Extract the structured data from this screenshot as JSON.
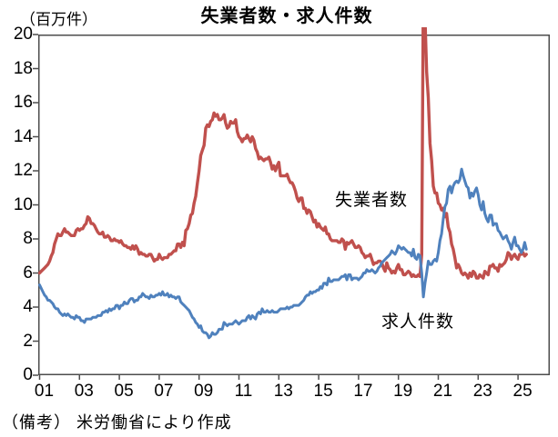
{
  "title": "失業者数・求人件数",
  "unit_label": "（百万件）",
  "note": "（備考） 米労働省により作成",
  "colors": {
    "unemployed_line": "#C0504D",
    "openings_line": "#4F81BD",
    "axis": "#4D4D4D",
    "background": "#FFFFFF",
    "text": "#000000"
  },
  "chart_data": {
    "type": "line",
    "title": "失業者数・求人件数",
    "ylabel": "（百万件）",
    "xlabel": "",
    "ylim": [
      0,
      20
    ],
    "yticks": [
      0,
      2,
      4,
      6,
      8,
      10,
      12,
      14,
      16,
      18,
      20
    ],
    "xtick_labels": [
      "01",
      "03",
      "05",
      "07",
      "09",
      "11",
      "13",
      "15",
      "17",
      "19",
      "21",
      "23",
      "25"
    ],
    "x_start_year": 2001,
    "points_per_year": 12,
    "grid": false,
    "legend_position": "inline-annotations",
    "series": [
      {
        "name": "失業者数",
        "color": "#C0504D",
        "values": [
          6.0,
          6.1,
          6.2,
          6.3,
          6.4,
          6.5,
          6.7,
          7.0,
          7.2,
          7.7,
          8.0,
          8.3,
          8.2,
          8.2,
          8.4,
          8.6,
          8.4,
          8.4,
          8.3,
          8.2,
          8.2,
          8.2,
          8.5,
          8.6,
          8.5,
          8.6,
          8.6,
          8.8,
          8.9,
          9.3,
          9.2,
          8.9,
          8.9,
          8.8,
          8.6,
          8.4,
          8.3,
          8.3,
          8.4,
          8.1,
          8.1,
          8.2,
          8.1,
          7.9,
          7.9,
          8.0,
          7.9,
          7.9,
          7.8,
          7.9,
          7.7,
          7.6,
          7.6,
          7.5,
          7.5,
          7.4,
          7.6,
          7.4,
          7.6,
          7.4,
          7.1,
          7.2,
          7.1,
          7.1,
          7.0,
          7.0,
          7.1,
          7.1,
          6.9,
          6.7,
          6.8,
          6.8,
          7.1,
          6.9,
          6.8,
          6.9,
          6.9,
          6.9,
          7.1,
          7.1,
          7.2,
          7.3,
          7.3,
          7.7,
          7.7,
          7.5,
          7.8,
          7.6,
          8.5,
          8.6,
          8.9,
          9.4,
          9.5,
          10.1,
          10.5,
          11.3,
          12.0,
          12.9,
          13.2,
          13.5,
          14.5,
          14.7,
          14.6,
          14.9,
          15.0,
          15.4,
          15.2,
          15.3,
          15.0,
          15.0,
          15.1,
          15.3,
          14.8,
          14.5,
          14.6,
          14.9,
          14.8,
          14.8,
          15.0,
          14.3,
          14.0,
          13.9,
          13.7,
          13.9,
          13.9,
          14.1,
          13.9,
          13.7,
          14.0,
          13.8,
          13.3,
          13.1,
          12.7,
          12.8,
          12.7,
          12.6,
          12.7,
          12.7,
          12.8,
          12.5,
          12.1,
          12.3,
          12.0,
          12.3,
          12.5,
          11.7,
          11.7,
          11.7,
          11.7,
          11.8,
          11.5,
          11.3,
          11.3,
          11.1,
          10.8,
          10.4,
          10.2,
          10.4,
          10.4,
          9.8,
          9.8,
          9.5,
          9.7,
          9.6,
          9.3,
          9.0,
          9.1,
          8.7,
          8.9,
          8.7,
          8.6,
          8.5,
          8.7,
          8.3,
          8.3,
          8.0,
          7.9,
          7.9,
          7.9,
          7.9,
          7.8,
          7.8,
          8.0,
          7.9,
          7.4,
          7.8,
          7.7,
          7.8,
          7.9,
          7.7,
          7.5,
          7.5,
          7.6,
          7.5,
          7.2,
          7.1,
          6.9,
          7.0,
          7.0,
          7.1,
          6.8,
          6.5,
          6.6,
          6.6,
          6.7,
          6.7,
          6.6,
          6.3,
          6.1,
          6.6,
          6.3,
          6.2,
          6.0,
          6.1,
          6.0,
          6.3,
          6.5,
          6.2,
          6.2,
          5.9,
          5.9,
          6.0,
          6.1,
          6.0,
          5.8,
          5.9,
          5.8,
          5.8,
          5.9,
          5.8,
          7.1,
          23.1,
          21.0,
          17.8,
          16.3,
          13.6,
          12.6,
          11.1,
          10.7,
          10.7,
          10.1,
          10.0,
          9.7,
          9.8,
          9.3,
          9.5,
          8.7,
          8.4,
          7.7,
          7.4,
          6.9,
          6.3,
          6.5,
          6.3,
          6.0,
          5.9,
          6.0,
          5.9,
          5.7,
          6.0,
          5.8,
          6.1,
          6.0,
          5.7,
          5.7,
          5.9,
          5.8,
          5.7,
          6.1,
          6.0,
          5.9,
          6.4,
          6.4,
          6.5,
          6.3,
          6.3,
          6.1,
          6.5,
          6.4,
          6.5,
          6.6,
          6.8,
          7.2,
          7.1,
          6.8,
          7.0,
          7.1,
          6.9,
          6.8,
          7.1,
          7.1,
          7.2,
          7.0,
          7.1
        ]
      },
      {
        "name": "求人件数",
        "color": "#4F81BD",
        "values": [
          5.3,
          5.1,
          4.9,
          4.7,
          4.6,
          4.4,
          4.4,
          4.3,
          4.2,
          4.0,
          3.9,
          3.9,
          3.7,
          3.6,
          3.5,
          3.6,
          3.5,
          3.6,
          3.5,
          3.4,
          3.4,
          3.3,
          3.5,
          3.4,
          3.4,
          3.2,
          3.2,
          3.1,
          3.3,
          3.3,
          3.3,
          3.3,
          3.4,
          3.4,
          3.4,
          3.5,
          3.5,
          3.5,
          3.7,
          3.7,
          3.8,
          3.7,
          3.9,
          3.8,
          3.9,
          3.9,
          4.1,
          4.1,
          3.9,
          4.1,
          4.1,
          4.3,
          4.2,
          4.2,
          4.4,
          4.5,
          4.5,
          4.3,
          4.4,
          4.4,
          4.6,
          4.6,
          4.8,
          4.7,
          4.6,
          4.6,
          4.5,
          4.7,
          4.6,
          4.6,
          4.7,
          4.7,
          4.8,
          4.7,
          4.9,
          4.7,
          4.7,
          4.8,
          4.6,
          4.7,
          4.6,
          4.6,
          4.5,
          4.6,
          4.6,
          4.3,
          4.2,
          4.1,
          4.0,
          3.9,
          3.8,
          3.6,
          3.4,
          3.3,
          3.1,
          3.0,
          2.8,
          2.9,
          2.6,
          2.5,
          2.5,
          2.4,
          2.2,
          2.3,
          2.5,
          2.4,
          2.4,
          2.5,
          2.7,
          2.7,
          2.7,
          3.1,
          3.0,
          2.9,
          3.0,
          3.0,
          3.0,
          3.1,
          3.2,
          3.1,
          3.0,
          3.1,
          3.2,
          3.2,
          3.2,
          3.4,
          3.5,
          3.3,
          3.5,
          3.4,
          3.3,
          3.6,
          3.7,
          3.6,
          3.9,
          3.7,
          3.7,
          3.8,
          3.7,
          3.7,
          3.8,
          3.7,
          3.7,
          3.7,
          3.8,
          3.9,
          3.9,
          3.9,
          3.9,
          4.0,
          3.9,
          4.0,
          4.0,
          4.1,
          4.1,
          4.1,
          4.1,
          4.2,
          4.3,
          4.4,
          4.6,
          4.7,
          4.7,
          4.9,
          4.8,
          4.9,
          4.9,
          5.0,
          5.0,
          5.2,
          5.1,
          5.4,
          5.4,
          5.3,
          5.7,
          5.5,
          5.5,
          5.6,
          5.6,
          5.6,
          5.6,
          5.7,
          5.8,
          5.8,
          5.9,
          5.6,
          5.9,
          5.9,
          5.6,
          5.7,
          5.7,
          5.7,
          5.6,
          5.7,
          5.8,
          6.0,
          6.0,
          6.2,
          6.1,
          6.1,
          6.2,
          6.1,
          6.0,
          6.1,
          6.3,
          6.4,
          6.6,
          6.7,
          6.8,
          6.9,
          7.0,
          7.1,
          7.3,
          7.2,
          7.1,
          7.3,
          7.6,
          7.5,
          7.4,
          7.5,
          7.4,
          7.3,
          7.2,
          7.2,
          7.0,
          7.4,
          6.9,
          6.8,
          7.1,
          7.0,
          6.0,
          4.6,
          5.4,
          6.0,
          6.7,
          6.5,
          6.5,
          6.7,
          6.8,
          6.7,
          7.2,
          7.9,
          8.3,
          9.2,
          9.9,
          10.1,
          10.9,
          11.1,
          10.7,
          11.1,
          11.3,
          11.4,
          11.3,
          11.5,
          12.1,
          11.7,
          11.4,
          11.1,
          11.0,
          10.4,
          10.7,
          10.5,
          10.8,
          11.0,
          10.6,
          10.0,
          9.7,
          10.2,
          9.5,
          9.2,
          9.0,
          9.4,
          9.4,
          8.8,
          8.9,
          8.9,
          8.5,
          8.4,
          8.2,
          8.0,
          8.1,
          8.2,
          7.9,
          7.7,
          7.4,
          7.8,
          8.1,
          7.6,
          7.6,
          7.4,
          7.2,
          7.4,
          7.8,
          7.4
        ]
      }
    ]
  }
}
